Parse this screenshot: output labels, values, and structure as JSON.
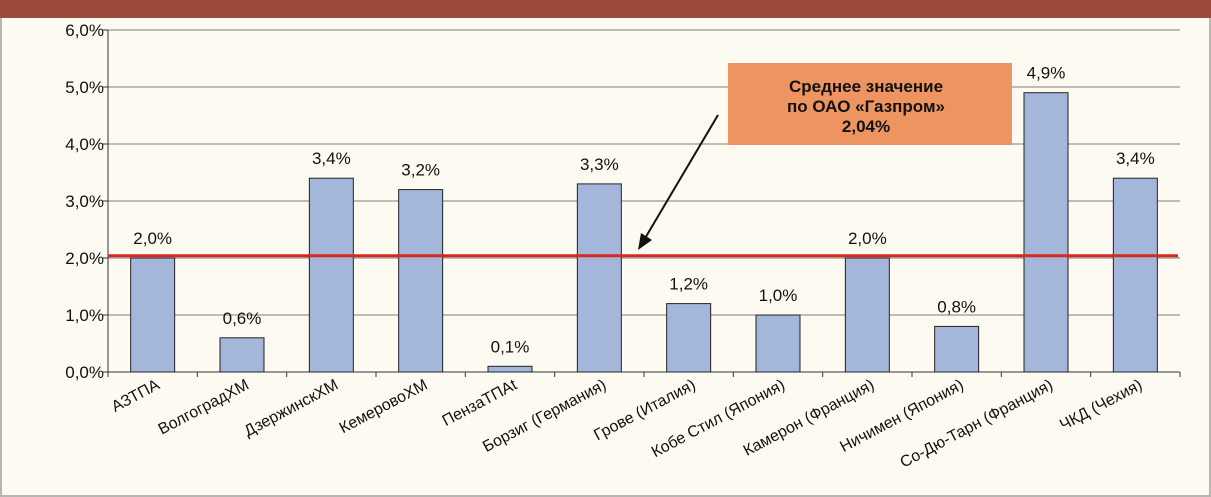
{
  "chart_data": {
    "type": "bar",
    "categories": [
      "АЗТПА",
      "ВолгоградХМ",
      "ДзержинскХМ",
      "КемеровоХМ",
      "ПензаТПАt",
      "Борзиг (Германия)",
      "Грове (Италия)",
      "Кобе Стил (Япония)",
      "Камерон (Франция)",
      "Ничимен (Япония)",
      "Со-Дю-Тарн (Франция)",
      "ЧКД (Чехия)"
    ],
    "values": [
      2.0,
      0.6,
      3.4,
      3.2,
      0.1,
      3.3,
      1.2,
      1.0,
      2.0,
      0.8,
      4.9,
      3.4
    ],
    "value_labels": [
      "2,0%",
      "0,6%",
      "3,4%",
      "3,2%",
      "0,1%",
      "3,3%",
      "1,2%",
      "1,0%",
      "2,0%",
      "0,8%",
      "4,9%",
      "3,4%"
    ],
    "color": "#a4b6da",
    "ylim": [
      0,
      6
    ],
    "yticks": [
      {
        "value": 0,
        "label": "0,0%"
      },
      {
        "value": 1,
        "label": "1,0%"
      },
      {
        "value": 2,
        "label": "2,0%"
      },
      {
        "value": 3,
        "label": "3,0%"
      },
      {
        "value": 4,
        "label": "4,0%"
      },
      {
        "value": 5,
        "label": "5,0%"
      },
      {
        "value": 6,
        "label": "6,0%"
      }
    ],
    "grid": true,
    "reference_line": {
      "value": 2.04,
      "color": "#d8281e",
      "label_lines": [
        "Среднее значение",
        "по ОАО «Газпром»"
      ],
      "label": "2,04%"
    }
  }
}
